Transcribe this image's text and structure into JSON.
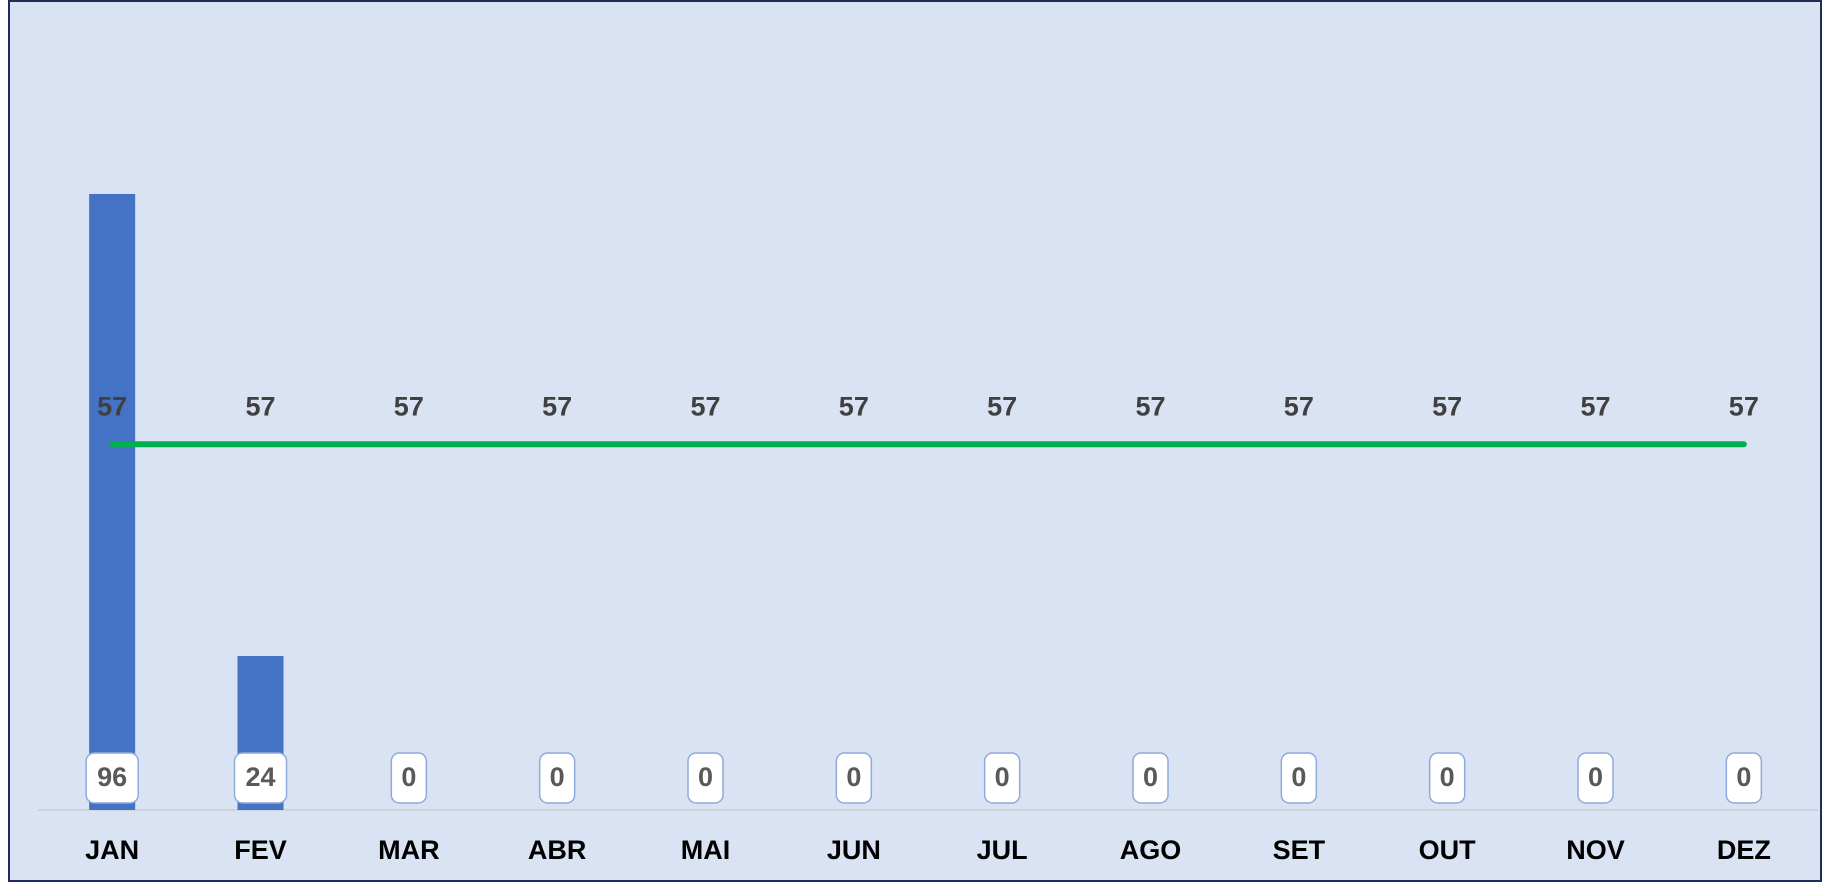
{
  "chart_data": {
    "type": "bar",
    "categories": [
      "JAN",
      "FEV",
      "MAR",
      "ABR",
      "MAI",
      "JUN",
      "JUL",
      "AGO",
      "SET",
      "OUT",
      "NOV",
      "DEZ"
    ],
    "series": [
      {
        "type": "bar",
        "color": "#4472c4",
        "values": [
          96,
          24,
          0,
          0,
          0,
          0,
          0,
          0,
          0,
          0,
          0,
          0
        ]
      },
      {
        "type": "line",
        "color": "#00b050",
        "values": [
          57,
          57,
          57,
          57,
          57,
          57,
          57,
          57,
          57,
          57,
          57,
          57
        ]
      }
    ],
    "ylim": [
      0,
      120
    ],
    "grid": false
  }
}
